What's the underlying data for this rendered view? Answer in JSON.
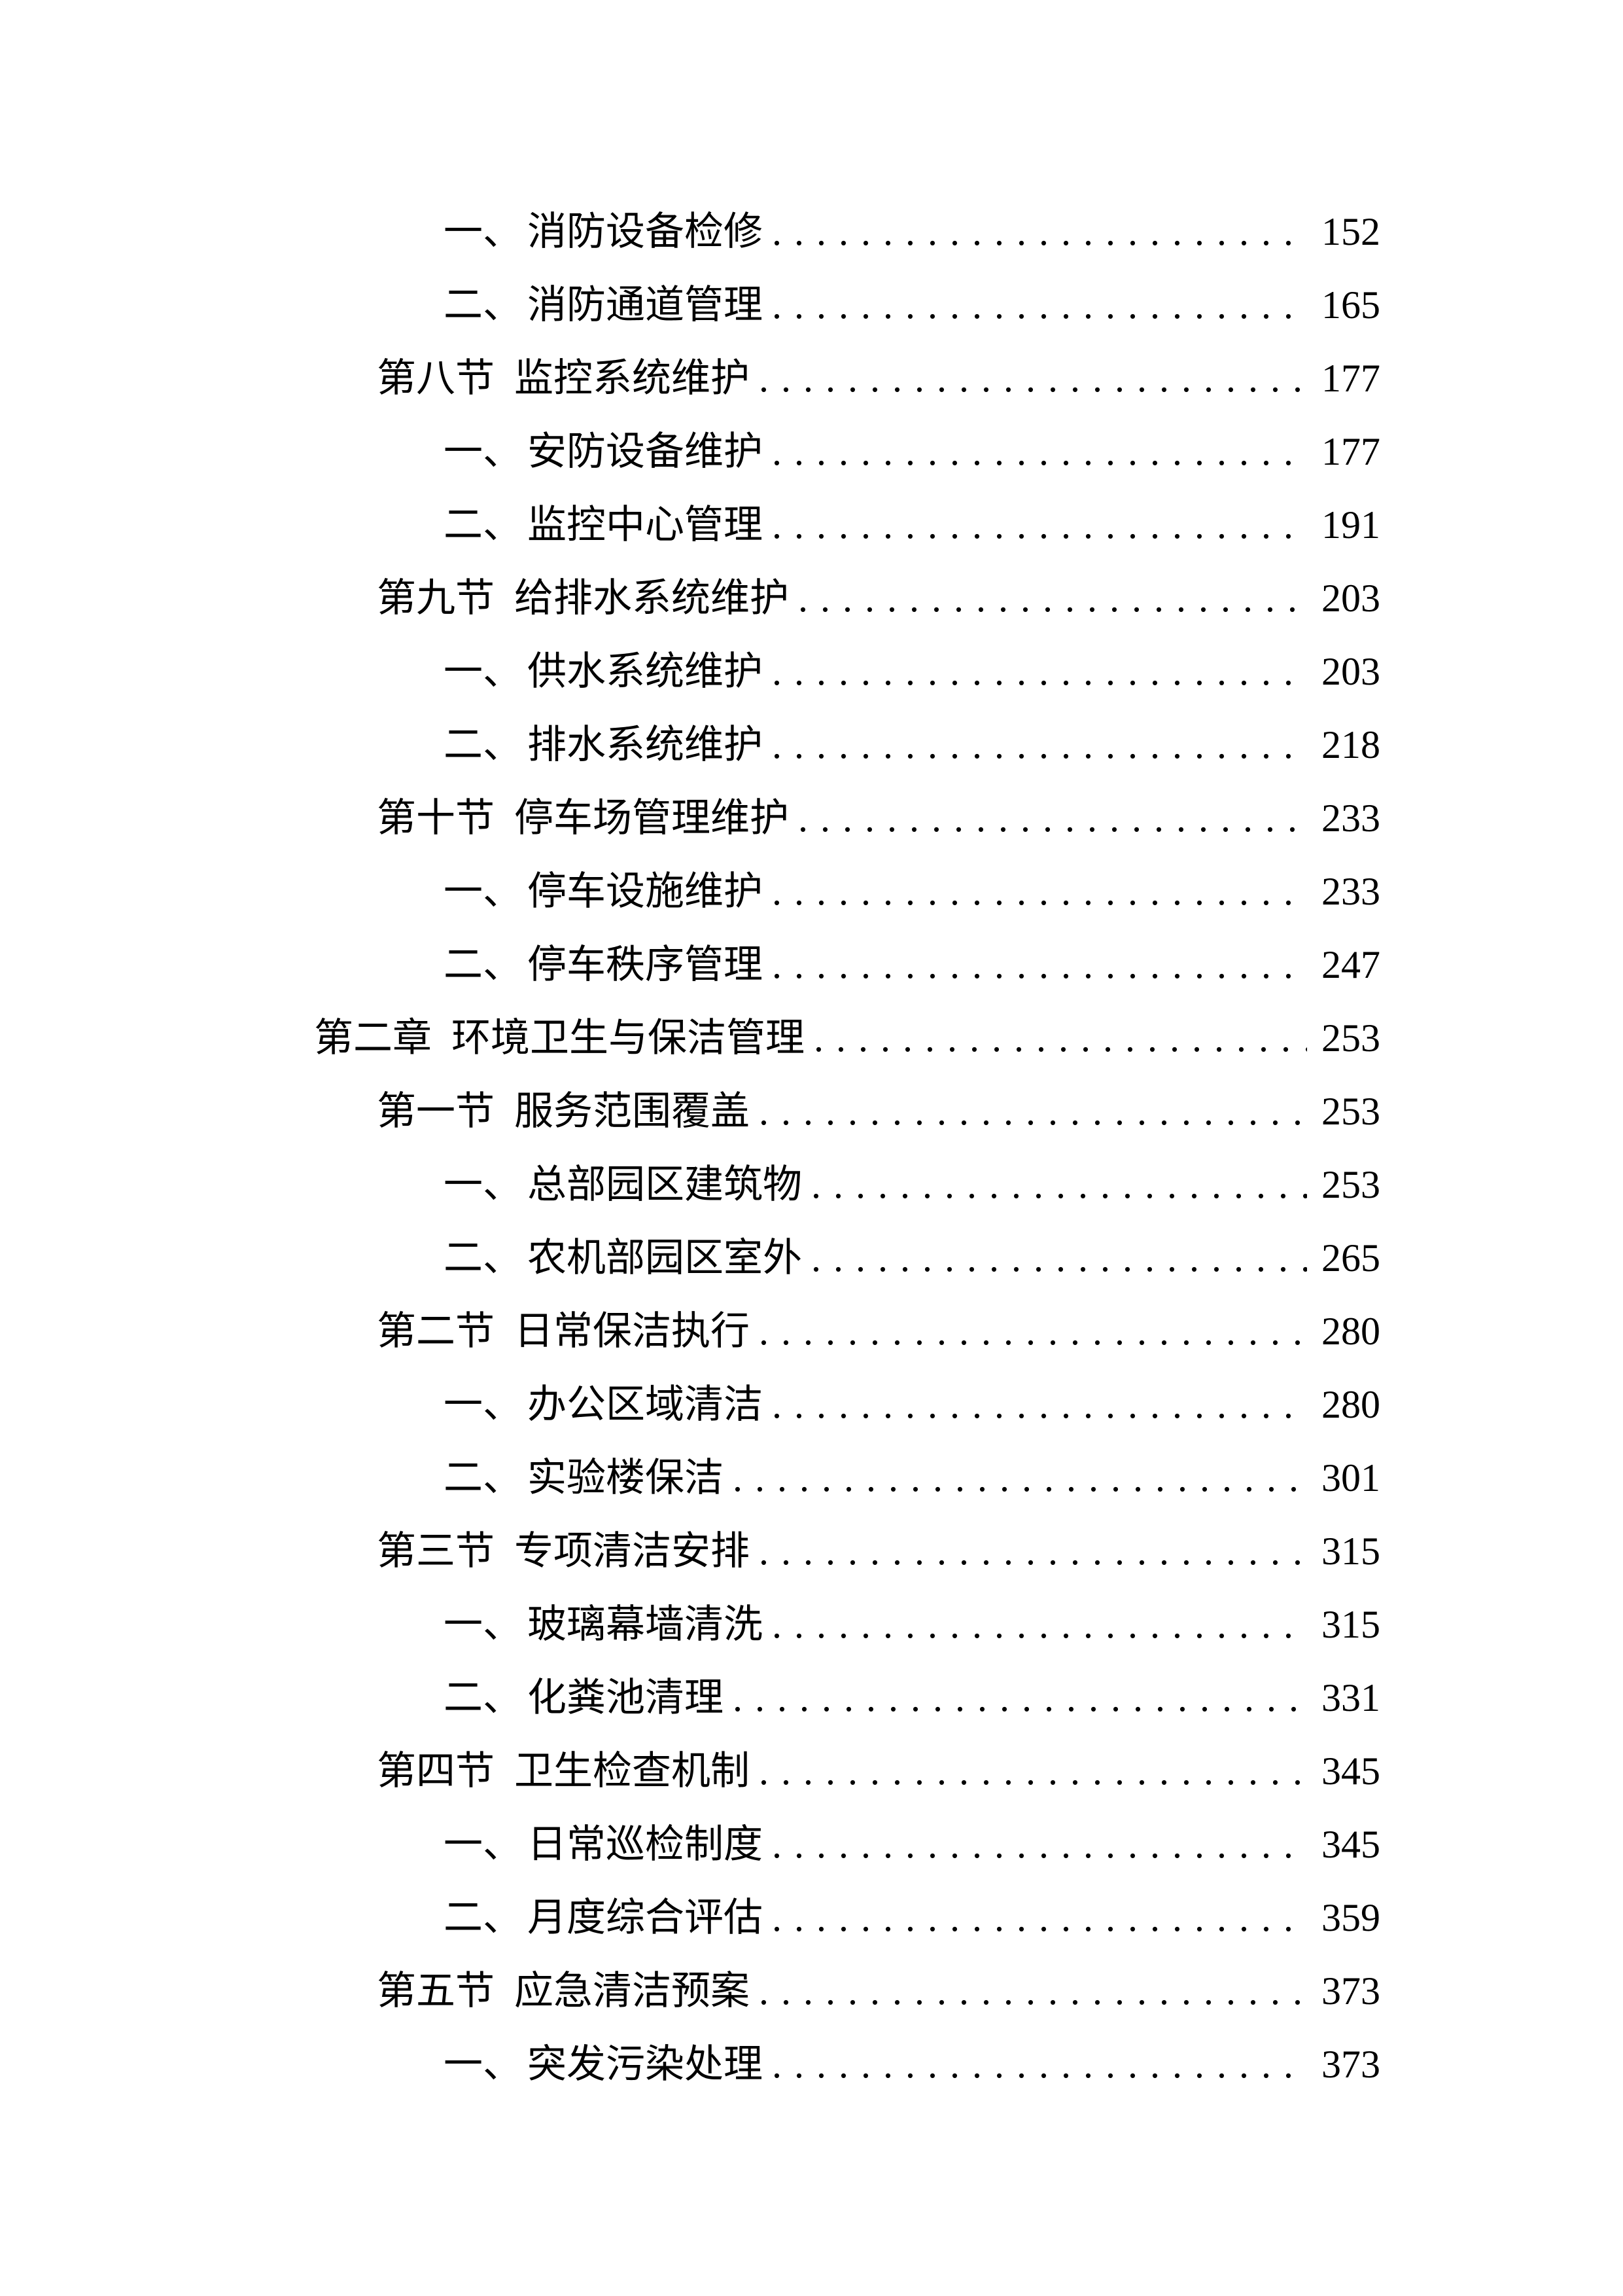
{
  "colors": {
    "text": "#000000",
    "background": "#ffffff"
  },
  "toc": {
    "entries": [
      {
        "level": 3,
        "num": "一、",
        "title": "消防设备检修",
        "page": "152"
      },
      {
        "level": 3,
        "num": "二、",
        "title": "消防通道管理",
        "page": "165"
      },
      {
        "level": 2,
        "num": "第八节",
        "title": "监控系统维护",
        "page": "177"
      },
      {
        "level": 3,
        "num": "一、",
        "title": "安防设备维护",
        "page": "177"
      },
      {
        "level": 3,
        "num": "二、",
        "title": "监控中心管理",
        "page": "191"
      },
      {
        "level": 2,
        "num": "第九节",
        "title": "给排水系统维护",
        "page": "203"
      },
      {
        "level": 3,
        "num": "一、",
        "title": "供水系统维护",
        "page": "203"
      },
      {
        "level": 3,
        "num": "二、",
        "title": "排水系统维护",
        "page": "218"
      },
      {
        "level": 2,
        "num": "第十节",
        "title": "停车场管理维护",
        "page": "233"
      },
      {
        "level": 3,
        "num": "一、",
        "title": "停车设施维护",
        "page": "233"
      },
      {
        "level": 3,
        "num": "二、",
        "title": "停车秩序管理",
        "page": "247"
      },
      {
        "level": 1,
        "num": "第二章",
        "title": "环境卫生与保洁管理",
        "page": "253"
      },
      {
        "level": 2,
        "num": "第一节",
        "title": "服务范围覆盖",
        "page": "253"
      },
      {
        "level": 3,
        "num": "一、",
        "title": "总部园区建筑物",
        "page": "253"
      },
      {
        "level": 3,
        "num": "二、",
        "title": "农机部园区室外",
        "page": "265"
      },
      {
        "level": 2,
        "num": "第二节",
        "title": "日常保洁执行",
        "page": "280"
      },
      {
        "level": 3,
        "num": "一、",
        "title": "办公区域清洁",
        "page": "280"
      },
      {
        "level": 3,
        "num": "二、",
        "title": "实验楼保洁",
        "page": "301"
      },
      {
        "level": 2,
        "num": "第三节",
        "title": "专项清洁安排",
        "page": "315"
      },
      {
        "level": 3,
        "num": "一、",
        "title": "玻璃幕墙清洗",
        "page": "315"
      },
      {
        "level": 3,
        "num": "二、",
        "title": "化粪池清理",
        "page": "331"
      },
      {
        "level": 2,
        "num": "第四节",
        "title": "卫生检查机制",
        "page": "345"
      },
      {
        "level": 3,
        "num": "一、",
        "title": "日常巡检制度",
        "page": "345"
      },
      {
        "level": 3,
        "num": "二、",
        "title": "月度综合评估",
        "page": "359"
      },
      {
        "level": 2,
        "num": "第五节",
        "title": "应急清洁预案",
        "page": "373"
      },
      {
        "level": 3,
        "num": "一、",
        "title": "突发污染处理",
        "page": "373"
      }
    ]
  }
}
